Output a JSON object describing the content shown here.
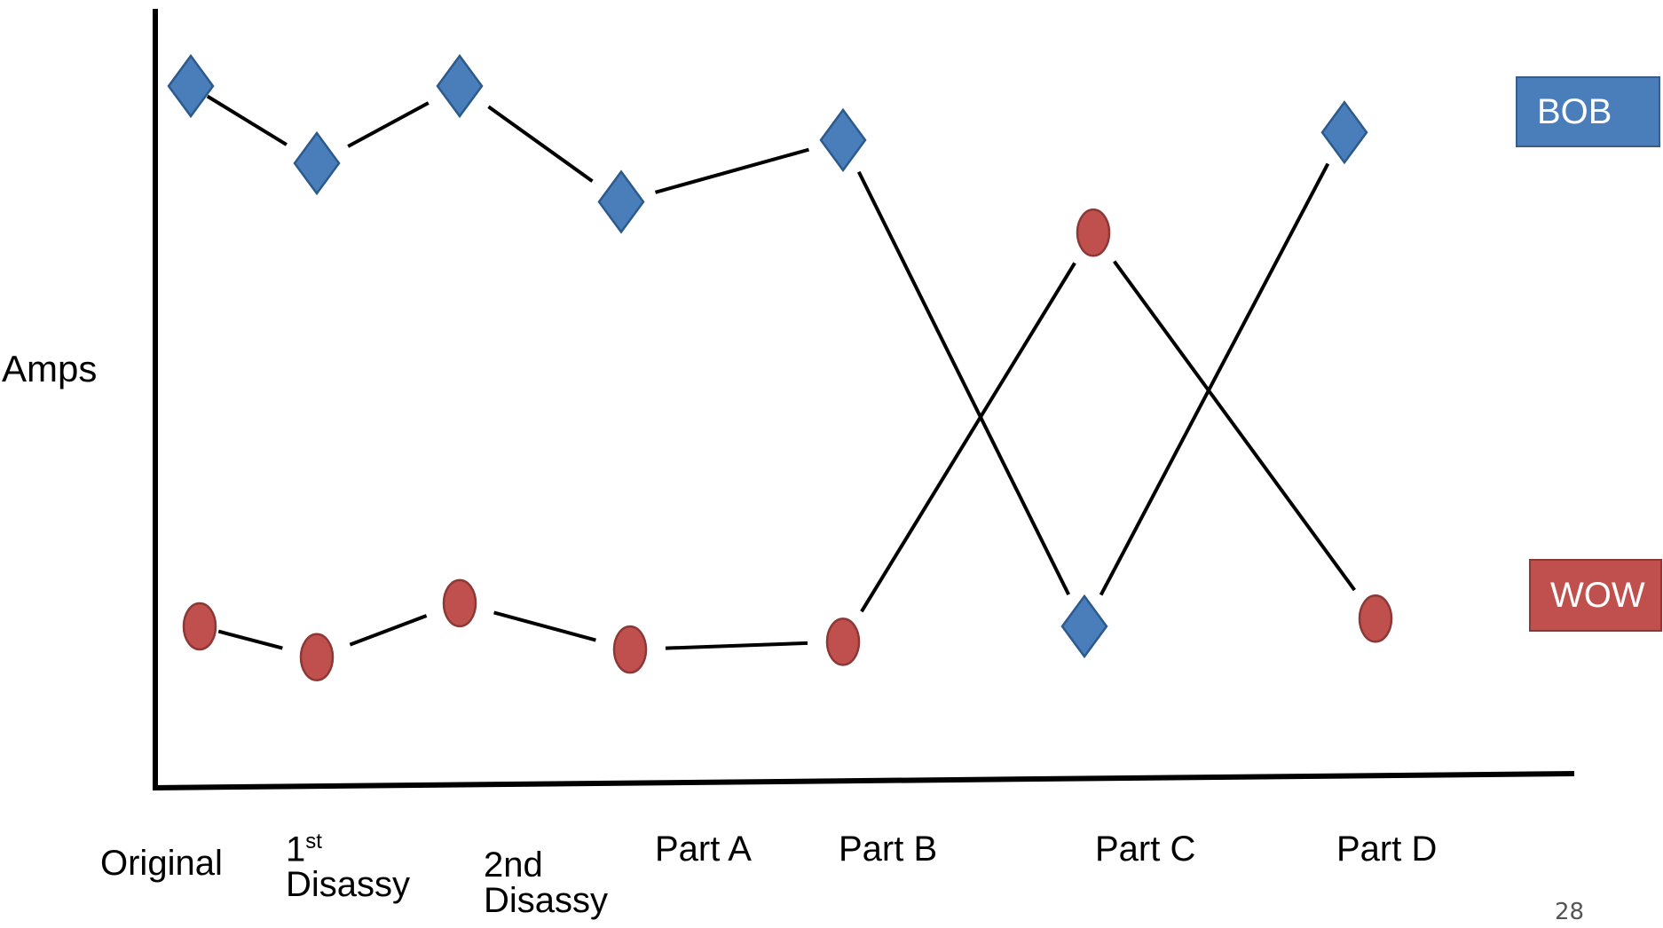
{
  "chart_data": {
    "type": "line",
    "ylabel": "Amps",
    "categories": [
      "Original",
      "1st Disassy",
      "2nd Disassy",
      "Part A",
      "Part B",
      "Part C",
      "Part D"
    ],
    "series": [
      {
        "name": "BOB",
        "color": "#4a7ebb",
        "marker": "diamond",
        "values": [
          9.0,
          8.0,
          9.0,
          7.5,
          8.3,
          2.0,
          8.4
        ]
      },
      {
        "name": "WOW",
        "color": "#c0504d",
        "marker": "circle",
        "values": [
          2.0,
          1.6,
          2.3,
          1.7,
          1.8,
          7.1,
          2.1
        ]
      }
    ],
    "ylim": [
      0,
      10
    ],
    "grid": false,
    "legend": "right"
  },
  "ticks": [
    {
      "main": "Original",
      "sup": "",
      "rest": ""
    },
    {
      "main": "1",
      "sup": "st",
      "rest": "Disassy"
    },
    {
      "main": "2nd",
      "sup": "",
      "rest": "Disassy"
    },
    {
      "main": "Part A",
      "sup": "",
      "rest": ""
    },
    {
      "main": "Part B",
      "sup": "",
      "rest": ""
    },
    {
      "main": "Part C",
      "sup": "",
      "rest": ""
    },
    {
      "main": "Part D",
      "sup": "",
      "rest": ""
    }
  ],
  "legend": {
    "bob": {
      "label": "BOB",
      "color": "#4a7ebb"
    },
    "wow": {
      "label": "WOW",
      "color": "#c0504d"
    }
  },
  "page_number": "28"
}
